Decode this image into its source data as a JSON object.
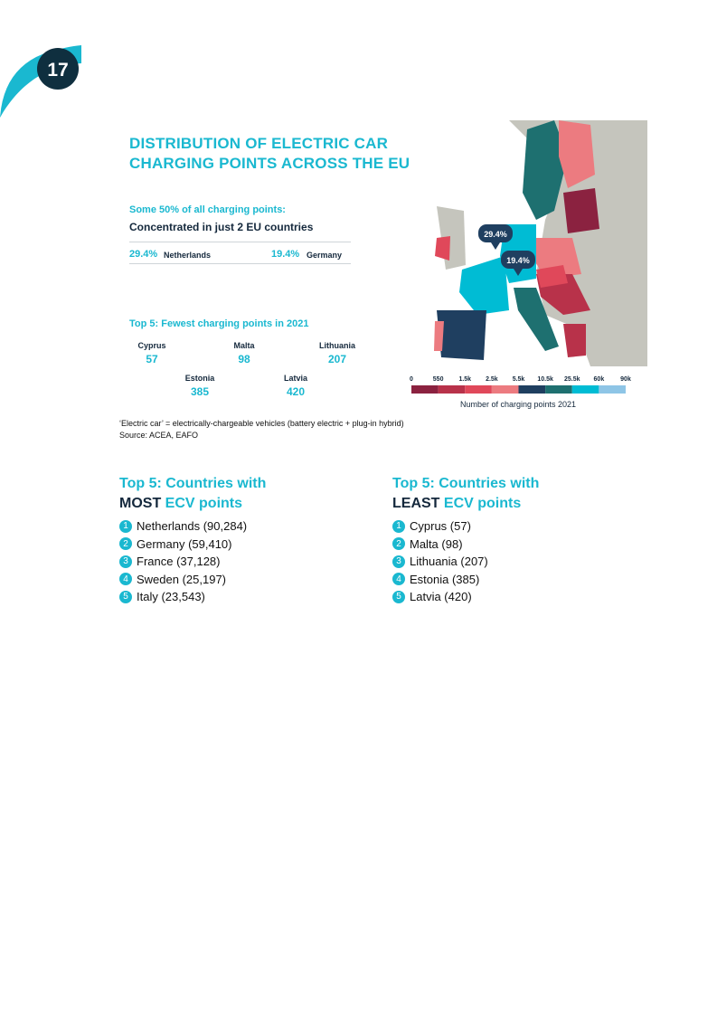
{
  "page_number": "17",
  "title": [
    "DISTRIBUTION OF ELECTRIC CAR",
    "CHARGING POINTS ACROSS THE EU"
  ],
  "summary": {
    "intro": "Some 50% of all charging points:",
    "headline": "Concentrated in just 2 EU countries",
    "shares": [
      {
        "value": "29.4%",
        "country": "Netherlands"
      },
      {
        "value": "19.4%",
        "country": "Germany"
      }
    ]
  },
  "fewest": {
    "heading": "Top 5: Fewest charging points in 2021",
    "items": [
      {
        "country": "Cyprus",
        "value": 57
      },
      {
        "country": "Malta",
        "value": 98
      },
      {
        "country": "Lithuania",
        "value": 207
      },
      {
        "country": "Estonia",
        "value": 385
      },
      {
        "country": "Latvia",
        "value": 420
      }
    ]
  },
  "map": {
    "callouts": [
      "29.4%",
      "19.4%"
    ],
    "legend": {
      "ticks": [
        "0",
        "550",
        "1.5k",
        "2.5k",
        "5.5k",
        "10.5k",
        "25.5k",
        "60k",
        "90k"
      ],
      "colors": [
        "#8b2240",
        "#b8324a",
        "#e0485a",
        "#ec7b80",
        "#1f3f60",
        "#1e7070",
        "#00bcd4",
        "#8ec5e6"
      ],
      "label": "Number of charging points 2021"
    }
  },
  "footnote": [
    "‘Electric car’ = electrically-chargeable vehicles (battery electric + plug-in hybrid)",
    "Source: ACEA, EAFO"
  ],
  "lists": [
    {
      "heading": "Top 5: Countries with",
      "emphasis": "MOST",
      "suffix": "ECV points",
      "items": [
        {
          "rank": 1,
          "text": "Netherlands (90,284)"
        },
        {
          "rank": 2,
          "text": "Germany (59,410)"
        },
        {
          "rank": 3,
          "text": "France (37,128)"
        },
        {
          "rank": 4,
          "text": "Sweden (25,197)"
        },
        {
          "rank": 5,
          "text": "Italy (23,543)"
        }
      ]
    },
    {
      "heading": "Top 5: Countries with",
      "emphasis": "LEAST",
      "suffix": "ECV points",
      "items": [
        {
          "rank": 1,
          "text": "Cyprus (57)"
        },
        {
          "rank": 2,
          "text": "Malta (98)"
        },
        {
          "rank": 3,
          "text": "Lithuania (207)"
        },
        {
          "rank": 4,
          "text": "Estonia (385)"
        },
        {
          "rank": 5,
          "text": "Latvia (420)"
        }
      ]
    }
  ]
}
